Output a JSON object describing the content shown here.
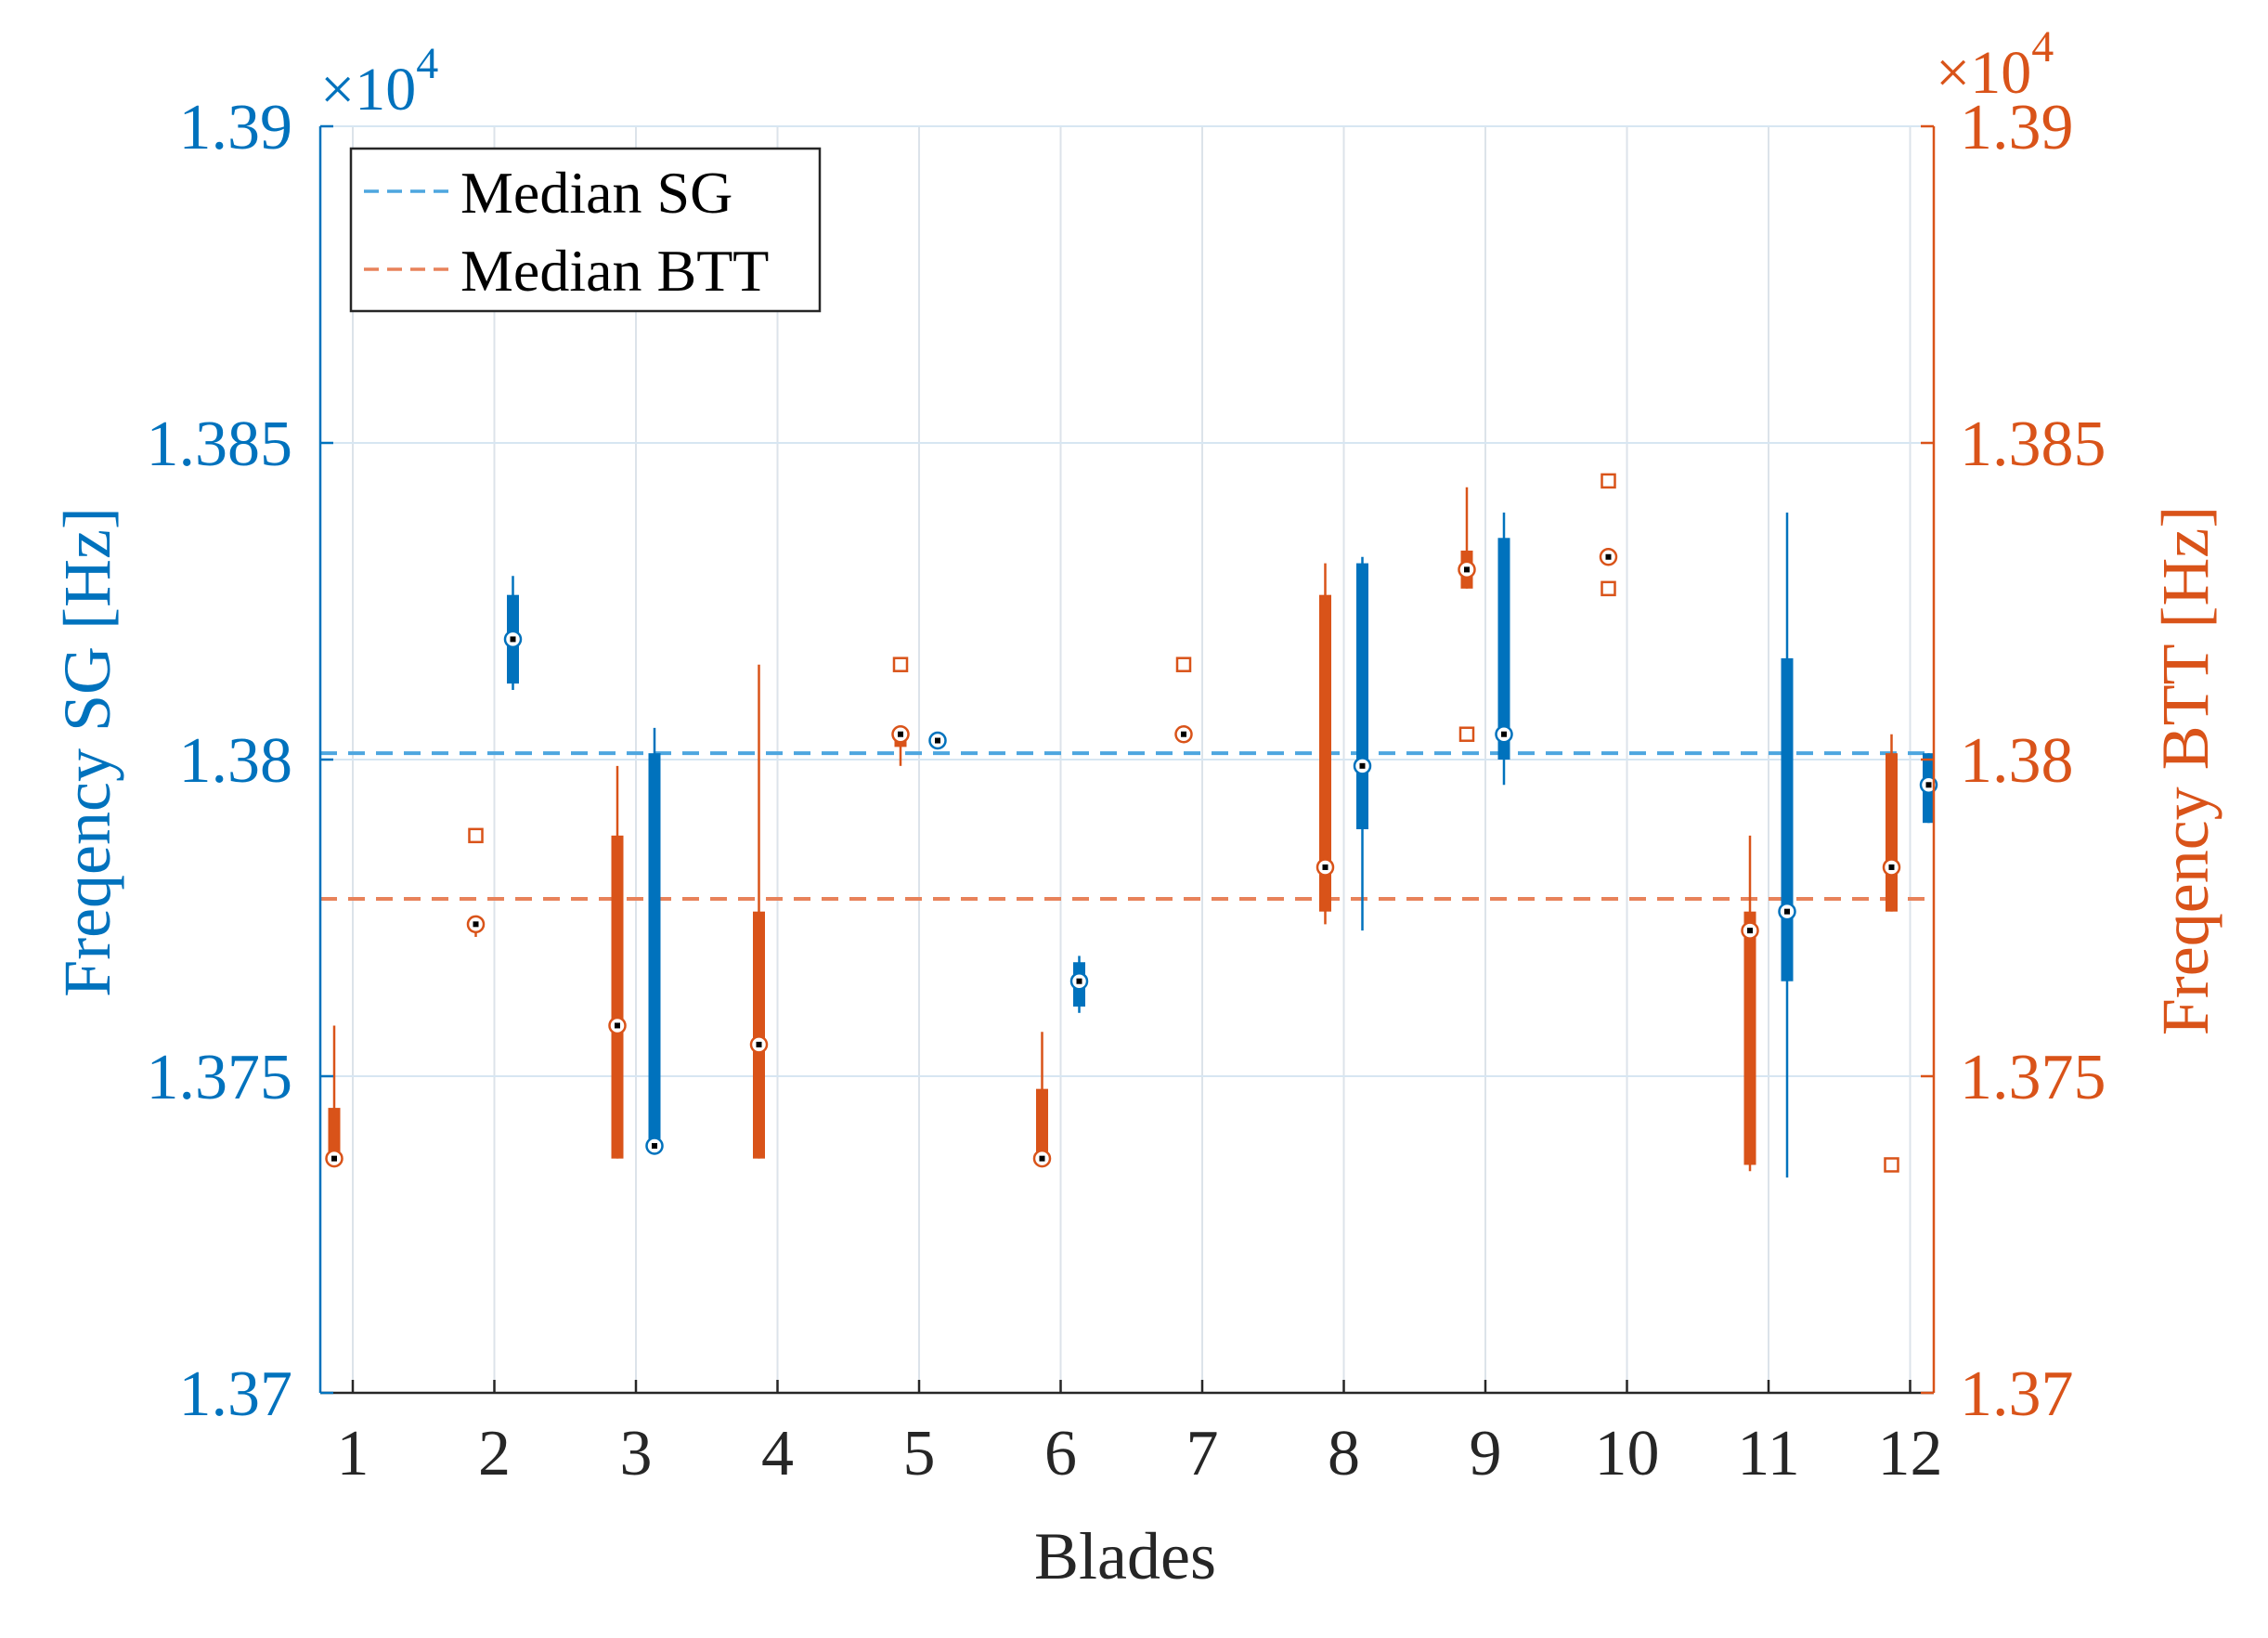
{
  "chart_data": {
    "type": "boxplot",
    "xlabel": "Blades",
    "categories": [
      "1",
      "2",
      "3",
      "4",
      "5",
      "6",
      "7",
      "8",
      "9",
      "10",
      "11",
      "12"
    ],
    "y_left": {
      "label": "Freqency SG [Hz]",
      "ylim": [
        1.37,
        1.39
      ],
      "ticks": [
        "1.37",
        "1.375",
        "1.38",
        "1.385",
        "1.39"
      ],
      "tick_values": [
        1.37,
        1.375,
        1.38,
        1.385,
        1.39
      ],
      "multiplier": "×10",
      "exponent": "4",
      "color": "#0072BD"
    },
    "y_right": {
      "label": "Freqency BTT [Hz]",
      "ylim": [
        1.37,
        1.39
      ],
      "ticks": [
        "1.37",
        "1.375",
        "1.38",
        "1.385",
        "1.39"
      ],
      "tick_values": [
        1.37,
        1.375,
        1.38,
        1.385,
        1.39
      ],
      "multiplier": "×10",
      "exponent": "4",
      "color": "#D95319"
    },
    "grid": true,
    "legend": {
      "position": "top-left",
      "entries": [
        {
          "label": "Median SG",
          "color": "#4DA6DF"
        },
        {
          "label": "Median BTT",
          "color": "#E8825A"
        }
      ]
    },
    "median_lines": {
      "SG": 1.3801,
      "BTT": 1.3778
    },
    "series": [
      {
        "name": "SG",
        "color": "#0072BD",
        "boxes": [
          {
            "blade": 2,
            "whisker_low": 1.3811,
            "q1": 1.3812,
            "median": 1.3819,
            "q3": 1.3826,
            "whisker_high": 1.3829,
            "outliers": []
          },
          {
            "blade": 3,
            "whisker_low": 1.3739,
            "q1": 1.3739,
            "median": 1.3739,
            "q3": 1.3801,
            "whisker_high": 1.3805,
            "outliers": []
          },
          {
            "blade": 5,
            "whisker_low": 1.3802,
            "q1": 1.3802,
            "median": 1.3803,
            "q3": 1.3803,
            "whisker_high": 1.3804,
            "outliers": []
          },
          {
            "blade": 6,
            "whisker_low": 1.376,
            "q1": 1.3761,
            "median": 1.3765,
            "q3": 1.3768,
            "whisker_high": 1.3769,
            "outliers": []
          },
          {
            "blade": 8,
            "whisker_low": 1.3773,
            "q1": 1.3789,
            "median": 1.3799,
            "q3": 1.3831,
            "whisker_high": 1.3832,
            "outliers": []
          },
          {
            "blade": 9,
            "whisker_low": 1.3796,
            "q1": 1.38,
            "median": 1.3804,
            "q3": 1.3835,
            "whisker_high": 1.3839,
            "outliers": []
          },
          {
            "blade": 11,
            "whisker_low": 1.3734,
            "q1": 1.3765,
            "median": 1.3776,
            "q3": 1.3816,
            "whisker_high": 1.3839,
            "outliers": []
          },
          {
            "blade": 12,
            "whisker_low": 1.379,
            "q1": 1.379,
            "median": 1.3796,
            "q3": 1.3801,
            "whisker_high": 1.3801,
            "outliers": []
          }
        ]
      },
      {
        "name": "BTT",
        "color": "#D95319",
        "boxes": [
          {
            "blade": 1,
            "whisker_low": 1.3737,
            "q1": 1.3737,
            "median": 1.3737,
            "q3": 1.3745,
            "whisker_high": 1.3758,
            "outliers": []
          },
          {
            "blade": 2,
            "whisker_low": 1.3772,
            "q1": 1.3774,
            "median": 1.3774,
            "q3": 1.3775,
            "whisker_high": 1.3775,
            "outliers": [
              1.3788
            ]
          },
          {
            "blade": 3,
            "whisker_low": 1.3737,
            "q1": 1.3737,
            "median": 1.3758,
            "q3": 1.3788,
            "whisker_high": 1.3799,
            "outliers": []
          },
          {
            "blade": 4,
            "whisker_low": 1.3737,
            "q1": 1.3737,
            "median": 1.3755,
            "q3": 1.3776,
            "whisker_high": 1.3815,
            "outliers": []
          },
          {
            "blade": 5,
            "whisker_low": 1.3799,
            "q1": 1.3802,
            "median": 1.3804,
            "q3": 1.3805,
            "whisker_high": 1.3805,
            "outliers": [
              1.3815
            ]
          },
          {
            "blade": 6,
            "whisker_low": 1.3737,
            "q1": 1.3737,
            "median": 1.3737,
            "q3": 1.3748,
            "whisker_high": 1.3757,
            "outliers": []
          },
          {
            "blade": 7,
            "whisker_low": 1.3803,
            "q1": 1.3803,
            "median": 1.3804,
            "q3": 1.3805,
            "whisker_high": 1.3805,
            "outliers": [
              1.3815
            ]
          },
          {
            "blade": 8,
            "whisker_low": 1.3774,
            "q1": 1.3776,
            "median": 1.3783,
            "q3": 1.3826,
            "whisker_high": 1.3831,
            "outliers": []
          },
          {
            "blade": 9,
            "whisker_low": 1.3827,
            "q1": 1.3827,
            "median": 1.383,
            "q3": 1.3833,
            "whisker_high": 1.3843,
            "outliers": [
              1.3804
            ]
          },
          {
            "blade": 10,
            "whisker_low": 1.3832,
            "q1": 1.3832,
            "median": 1.3832,
            "q3": 1.3832,
            "whisker_high": 1.3832,
            "outliers": [
              1.3827,
              1.3844
            ]
          },
          {
            "blade": 11,
            "whisker_low": 1.3735,
            "q1": 1.3736,
            "median": 1.3773,
            "q3": 1.3776,
            "whisker_high": 1.3788,
            "outliers": []
          },
          {
            "blade": 12,
            "whisker_low": 1.3776,
            "q1": 1.3776,
            "median": 1.3783,
            "q3": 1.3801,
            "whisker_high": 1.3804,
            "outliers": [
              1.3736
            ]
          }
        ]
      }
    ]
  }
}
